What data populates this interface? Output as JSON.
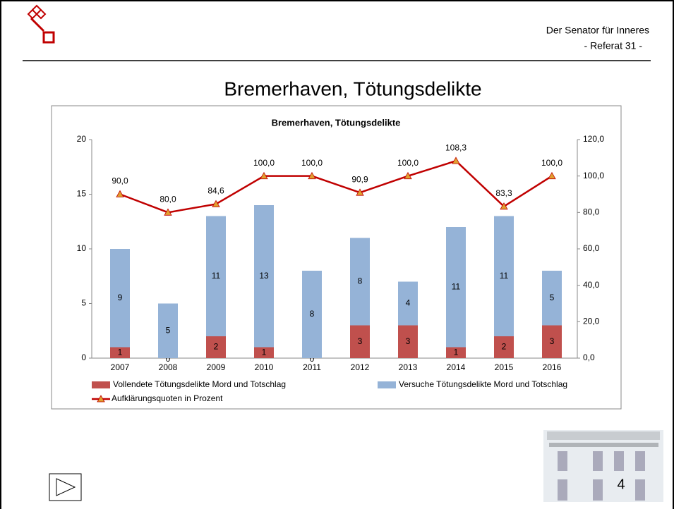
{
  "header": {
    "org": "Der Senator für Inneres",
    "dept": "- Referat 31 -",
    "slide_title": "Bremerhaven, Tötungsdelikte",
    "page": "4"
  },
  "chart_data": {
    "type": "bar",
    "stacked": true,
    "title": "Bremerhaven, Tötungsdelikte",
    "categories": [
      "2007",
      "2008",
      "2009",
      "2010",
      "2011",
      "2012",
      "2013",
      "2014",
      "2015",
      "2016"
    ],
    "series": [
      {
        "name": "Vollendete Tötungsdelikte Mord und Totschlag",
        "color": "#c0504d",
        "values": [
          1,
          0,
          2,
          1,
          0,
          3,
          3,
          1,
          2,
          3
        ]
      },
      {
        "name": "Versuche Tötungsdelikte Mord und Totschlag",
        "color": "#95b3d7",
        "values": [
          9,
          5,
          11,
          13,
          8,
          8,
          4,
          11,
          11,
          5
        ]
      },
      {
        "name": "Aufklärungsquoten in Prozent",
        "type": "line",
        "axis": "y2",
        "color": "#c00000",
        "marker_color": "#e0a030",
        "values": [
          90,
          80,
          84.6,
          100,
          100,
          90.9,
          100,
          108.3,
          83.3,
          100
        ],
        "value_labels": [
          "90,0",
          "80,0",
          "84,6",
          "100,0",
          "100,0",
          "90,9",
          "100,0",
          "108,3",
          "83,3",
          "100,0"
        ]
      }
    ],
    "ylim": [
      0,
      20
    ],
    "yticks": [
      0,
      5,
      10,
      15,
      20
    ],
    "y2lim": [
      0,
      120
    ],
    "y2ticks": [
      {
        "value": 0,
        "label": "0,0"
      },
      {
        "value": 20,
        "label": "20,0"
      },
      {
        "value": 40,
        "label": "40,0"
      },
      {
        "value": 60,
        "label": "60,0"
      },
      {
        "value": 80,
        "label": "80,0"
      },
      {
        "value": 100,
        "label": "100,0"
      },
      {
        "value": 120,
        "label": "120,0"
      }
    ],
    "grid": false,
    "legend": "bottom"
  }
}
